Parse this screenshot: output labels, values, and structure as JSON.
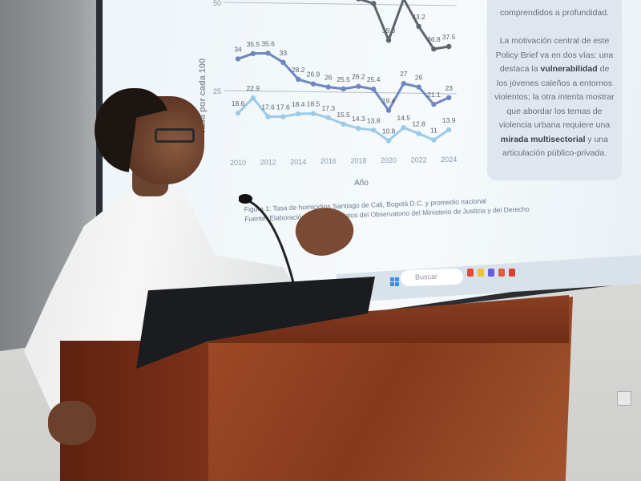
{
  "scene": "presenter at podium in front of projected slide",
  "slide": {
    "chart": {
      "y_axis_label": "Tasa por cada 100",
      "x_axis_label": "Año",
      "y_ticks": [
        "50",
        "25"
      ],
      "x_ticks": [
        "2010",
        "2012",
        "2014",
        "2016",
        "2018",
        "2020",
        "2022",
        "2024"
      ],
      "years": [
        2010,
        2011,
        2012,
        2013,
        2014,
        2015,
        2016,
        2017,
        2018,
        2019,
        2020,
        2021,
        2022,
        2023,
        2024
      ],
      "series": [
        {
          "color": "#5f656c",
          "values": [
            null,
            null,
            null,
            null,
            null,
            null,
            null,
            null,
            51,
            49.7,
            39.3,
            51,
            43.2,
            36.8,
            37.5
          ],
          "labels": [
            null,
            null,
            null,
            null,
            null,
            null,
            null,
            null,
            null,
            "49.7",
            "39.3",
            null,
            "43.2",
            "36.8",
            "37.5"
          ]
        },
        {
          "color": "#6f87c0",
          "values": [
            34,
            35.5,
            35.6,
            33,
            28.2,
            26.9,
            26,
            25.5,
            26.2,
            25.4,
            19.4,
            27,
            26,
            21.1,
            23
          ],
          "labels": [
            "34",
            "35.5",
            "35.6",
            "33",
            "28.2",
            "26.9",
            "26",
            "25.5",
            "26.2",
            "25.4",
            "19.4",
            "27",
            "26",
            "21.1",
            "23"
          ]
        },
        {
          "color": "#9ccbea",
          "values": [
            18.6,
            22.9,
            17.6,
            17.6,
            18.4,
            18.5,
            17.3,
            15.5,
            14.3,
            13.8,
            10.8,
            14.5,
            12.8,
            11,
            13.9
          ],
          "labels": [
            "18.6",
            "22.9",
            "17.6",
            "17.6",
            "18.4",
            "18.5",
            "17.3",
            "15.5",
            "14.3",
            "13.8",
            "10.8",
            "14.5",
            "12.8",
            "11",
            "13.9"
          ]
        }
      ]
    },
    "caption": {
      "line1": "Figura 1: Tasa de homicidios Santiago de Cali, Bogotá D.C. y promedio nacional",
      "line2": "Fuente: Elaboración propia con datos del Observatorio del Ministerio de Justicia y del Derecho"
    },
    "textbox": {
      "line0": "comprendidos a profundidad.",
      "p1": "La motivación central de este Policy Brief va en dos vías: una destaca la",
      "b1": "vulnerabilidad",
      "p2": "de los jóvenes caleños a entornos violentos; la otra intenta mostrar que abordar los temas de violencia urbana requiere una",
      "b2": "mirada multisectorial",
      "p3": "y una articulación público-privada."
    },
    "taskbar": {
      "search_placeholder": "Buscar",
      "app_colors": [
        "#e04a3a",
        "#f2c230",
        "#6a5be0",
        "#e05a4a",
        "#d8402f"
      ]
    }
  }
}
